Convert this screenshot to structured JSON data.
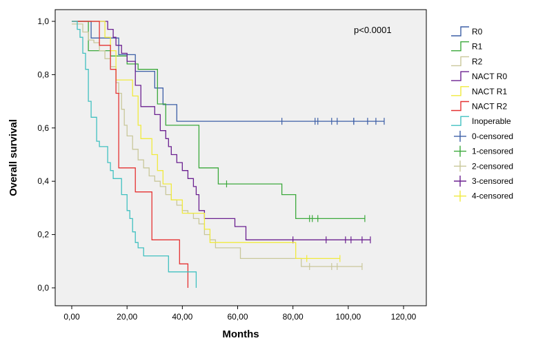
{
  "chart_data": {
    "type": "line",
    "subtype": "kaplan-meier",
    "xlabel": "Months",
    "ylabel": "Overall survival",
    "xlim": [
      0,
      120
    ],
    "ylim": [
      0,
      1
    ],
    "xticks": [
      "0,00",
      "20,00",
      "40,00",
      "60,00",
      "80,00",
      "100,00",
      "120,00"
    ],
    "xtick_values": [
      0,
      20,
      40,
      60,
      80,
      100,
      120
    ],
    "yticks": [
      "0,0",
      "0,2",
      "0,4",
      "0,6",
      "0,8",
      "1,0"
    ],
    "ytick_values": [
      0,
      0.2,
      0.4,
      0.6,
      0.8,
      1.0
    ],
    "annotation": "p<0.0001",
    "legend_position": "right",
    "plot_background": "#f0f0f0",
    "grid": false,
    "series": [
      {
        "name": "R0",
        "color": "#3b5ea6",
        "x": [
          0,
          2,
          7,
          13,
          17,
          20,
          23,
          28,
          30,
          33,
          38,
          113
        ],
        "y": [
          1.0,
          1.0,
          0.9375,
          0.9375,
          0.875,
          0.875,
          0.8125,
          0.8125,
          0.75,
          0.6875,
          0.625,
          0.625
        ],
        "censored_x": [
          76,
          88,
          89,
          94,
          96,
          102,
          102,
          107,
          110,
          113
        ]
      },
      {
        "name": "R1",
        "color": "#3aa83a",
        "x": [
          0,
          2,
          6,
          11,
          14,
          20,
          24,
          31,
          34,
          46,
          53,
          76,
          81,
          106
        ],
        "y": [
          1.0,
          1.0,
          0.89,
          0.89,
          0.87,
          0.84,
          0.82,
          0.69,
          0.61,
          0.45,
          0.39,
          0.35,
          0.26,
          0.26
        ],
        "censored_x": [
          56,
          86,
          87,
          89,
          106
        ]
      },
      {
        "name": "R2",
        "color": "#c9c79a",
        "x": [
          0,
          2,
          4,
          6,
          8,
          10,
          12,
          14,
          16,
          17,
          18,
          19,
          20,
          22,
          24,
          26,
          28,
          30,
          32,
          34,
          36,
          38,
          40,
          42,
          44,
          46,
          48,
          50,
          52,
          61,
          83,
          105
        ],
        "y": [
          0.99,
          0.99,
          0.96,
          0.93,
          0.92,
          0.89,
          0.86,
          0.83,
          0.77,
          0.73,
          0.67,
          0.61,
          0.57,
          0.52,
          0.48,
          0.45,
          0.42,
          0.4,
          0.38,
          0.35,
          0.33,
          0.31,
          0.29,
          0.28,
          0.26,
          0.24,
          0.2,
          0.18,
          0.15,
          0.11,
          0.08,
          0.08
        ],
        "censored_x": [
          86,
          94,
          96,
          105
        ]
      },
      {
        "name": "NACT R0",
        "color": "#6a1f8f",
        "x": [
          0,
          10,
          13,
          15,
          16,
          18,
          20,
          23,
          25,
          28,
          30,
          32,
          34,
          35,
          36,
          38,
          40,
          42,
          44,
          45,
          46,
          48,
          52,
          59,
          63,
          108
        ],
        "y": [
          1.0,
          1.0,
          0.97,
          0.94,
          0.91,
          0.88,
          0.85,
          0.76,
          0.68,
          0.68,
          0.65,
          0.59,
          0.56,
          0.53,
          0.5,
          0.47,
          0.44,
          0.41,
          0.38,
          0.35,
          0.29,
          0.26,
          0.26,
          0.23,
          0.18,
          0.18
        ],
        "censored_x": [
          80,
          92,
          99,
          101,
          105,
          108
        ]
      },
      {
        "name": "NACT R1",
        "color": "#f0ea3c",
        "x": [
          0,
          2,
          12,
          14,
          16,
          20,
          22,
          24,
          25,
          27,
          29,
          31,
          33,
          36,
          38,
          40,
          46,
          48,
          50,
          52,
          81,
          97
        ],
        "y": [
          1.0,
          1.0,
          0.94,
          0.89,
          0.78,
          0.78,
          0.72,
          0.61,
          0.56,
          0.56,
          0.5,
          0.44,
          0.39,
          0.33,
          0.33,
          0.28,
          0.28,
          0.22,
          0.17,
          0.17,
          0.11,
          0.11
        ],
        "censored_x": [
          85,
          97
        ]
      },
      {
        "name": "NACT R2",
        "color": "#e53030",
        "x": [
          0,
          2,
          10,
          12,
          14,
          16,
          17,
          22,
          23,
          28,
          29,
          38,
          39,
          42
        ],
        "y": [
          1.0,
          1.0,
          0.91,
          0.91,
          0.82,
          0.73,
          0.45,
          0.45,
          0.36,
          0.36,
          0.18,
          0.18,
          0.09,
          0.0
        ]
      },
      {
        "name": "Inoperable",
        "color": "#40c0c0",
        "x": [
          0,
          2,
          3,
          4,
          5,
          6,
          7,
          9,
          10,
          12,
          13,
          14,
          15,
          18,
          20,
          21,
          22,
          23,
          24,
          26,
          30,
          35,
          39,
          44,
          45
        ],
        "y": [
          1.0,
          0.97,
          0.94,
          0.88,
          0.82,
          0.7,
          0.64,
          0.55,
          0.53,
          0.53,
          0.47,
          0.44,
          0.41,
          0.35,
          0.29,
          0.26,
          0.21,
          0.17,
          0.15,
          0.12,
          0.12,
          0.06,
          0.06,
          0.06,
          0.0
        ]
      }
    ],
    "legend": [
      {
        "label": "R0",
        "symbol": "step",
        "color": "#3b5ea6"
      },
      {
        "label": "R1",
        "symbol": "step",
        "color": "#3aa83a"
      },
      {
        "label": "R2",
        "symbol": "step",
        "color": "#c9c79a"
      },
      {
        "label": "NACT R0",
        "symbol": "step",
        "color": "#6a1f8f"
      },
      {
        "label": "NACT R1",
        "symbol": "step",
        "color": "#f0ea3c"
      },
      {
        "label": "NACT R2",
        "symbol": "step",
        "color": "#e53030"
      },
      {
        "label": "Inoperable",
        "symbol": "step",
        "color": "#40c0c0"
      },
      {
        "label": "0-censored",
        "symbol": "cross",
        "color": "#3b5ea6"
      },
      {
        "label": "1-censored",
        "symbol": "cross",
        "color": "#3aa83a"
      },
      {
        "label": "2-censored",
        "symbol": "cross",
        "color": "#c9c79a"
      },
      {
        "label": "3-censored",
        "symbol": "cross",
        "color": "#6a1f8f"
      },
      {
        "label": "4-censored",
        "symbol": "cross",
        "color": "#f0ea3c"
      }
    ]
  }
}
